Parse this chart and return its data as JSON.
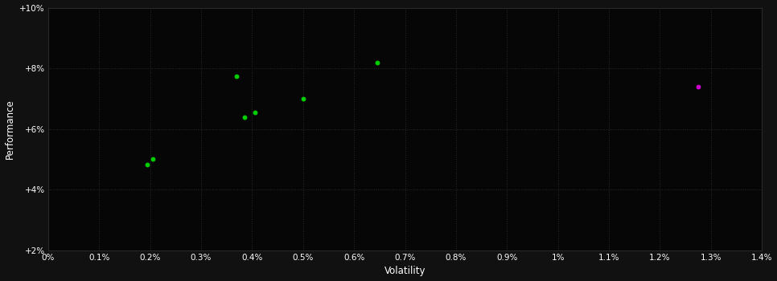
{
  "background_color": "#111111",
  "plot_bg_color": "#060606",
  "grid_color": "#2a2a2a",
  "text_color": "#ffffff",
  "xlabel": "Volatility",
  "ylabel": "Performance",
  "xlim": [
    0,
    0.014
  ],
  "ylim": [
    0.02,
    0.1
  ],
  "xticks": [
    0.0,
    0.001,
    0.002,
    0.003,
    0.004,
    0.005,
    0.006,
    0.007,
    0.008,
    0.009,
    0.01,
    0.011,
    0.012,
    0.013,
    0.014
  ],
  "xtick_labels": [
    "0%",
    "0.1%",
    "0.2%",
    "0.3%",
    "0.4%",
    "0.5%",
    "0.6%",
    "0.7%",
    "0.8%",
    "0.9%",
    "1%",
    "1.1%",
    "1.2%",
    "1.3%",
    "1.4%"
  ],
  "yticks": [
    0.02,
    0.04,
    0.06,
    0.08,
    0.1
  ],
  "ytick_labels": [
    "+2%",
    "+4%",
    "+6%",
    "+8%",
    "+10%"
  ],
  "green_points": [
    [
      0.00195,
      0.0483
    ],
    [
      0.00205,
      0.05
    ],
    [
      0.0037,
      0.0775
    ],
    [
      0.00385,
      0.0638
    ],
    [
      0.00405,
      0.0655
    ],
    [
      0.005,
      0.07
    ],
    [
      0.00645,
      0.082
    ]
  ],
  "magenta_points": [
    [
      0.01275,
      0.074
    ]
  ],
  "green_color": "#00cc00",
  "magenta_color": "#cc00cc",
  "point_size": 18
}
